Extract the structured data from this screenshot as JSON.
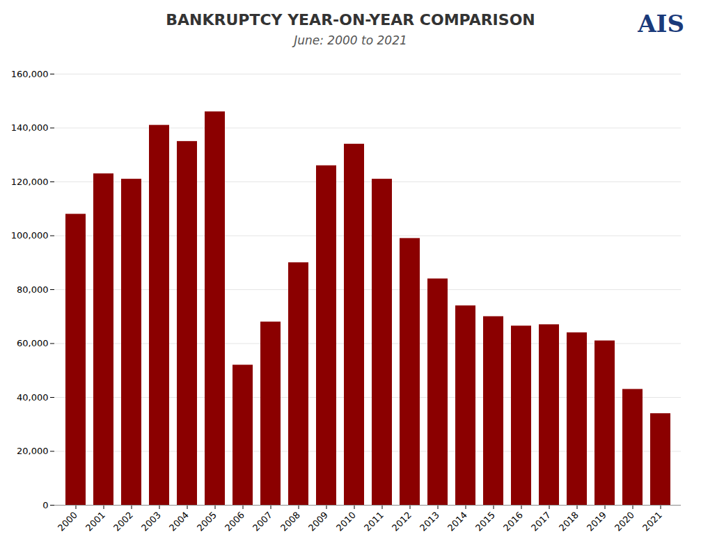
{
  "chart_data": {
    "type": "bar",
    "title": "BANKRUPTCY YEAR-ON-YEAR COMPARISON",
    "subtitle": "June: 2000 to 2021",
    "annotations": [
      {
        "text": "AIS",
        "color": "#1a3a7a"
      }
    ],
    "categories": [
      "2000",
      "2001",
      "2002",
      "2003",
      "2004",
      "2005",
      "2006",
      "2007",
      "2008",
      "2009",
      "2010",
      "2011",
      "2012",
      "2013",
      "2014",
      "2015",
      "2016",
      "2017",
      "2018",
      "2019",
      "2020",
      "2021"
    ],
    "values": [
      108000,
      123000,
      121000,
      141000,
      135000,
      146000,
      52000,
      68000,
      90000,
      126000,
      134000,
      121000,
      99000,
      84000,
      74000,
      70000,
      66500,
      67000,
      64000,
      61000,
      43000,
      34000
    ],
    "color": "#8B0000",
    "ylim": [
      0,
      160000
    ],
    "yticks": [
      0,
      {
        "value": 20000,
        "label": "20,000"
      },
      {
        "value": 40000,
        "label": "40,000"
      },
      {
        "value": 60000,
        "label": "60,000"
      },
      {
        "value": 80000,
        "label": "80,000"
      },
      {
        "value": 100000,
        "label": "100,000"
      },
      {
        "value": 120000,
        "label": "120,000"
      },
      {
        "value": 140000,
        "label": "140,000"
      },
      {
        "value": 160000,
        "label": "160,000"
      }
    ],
    "grid": true
  }
}
